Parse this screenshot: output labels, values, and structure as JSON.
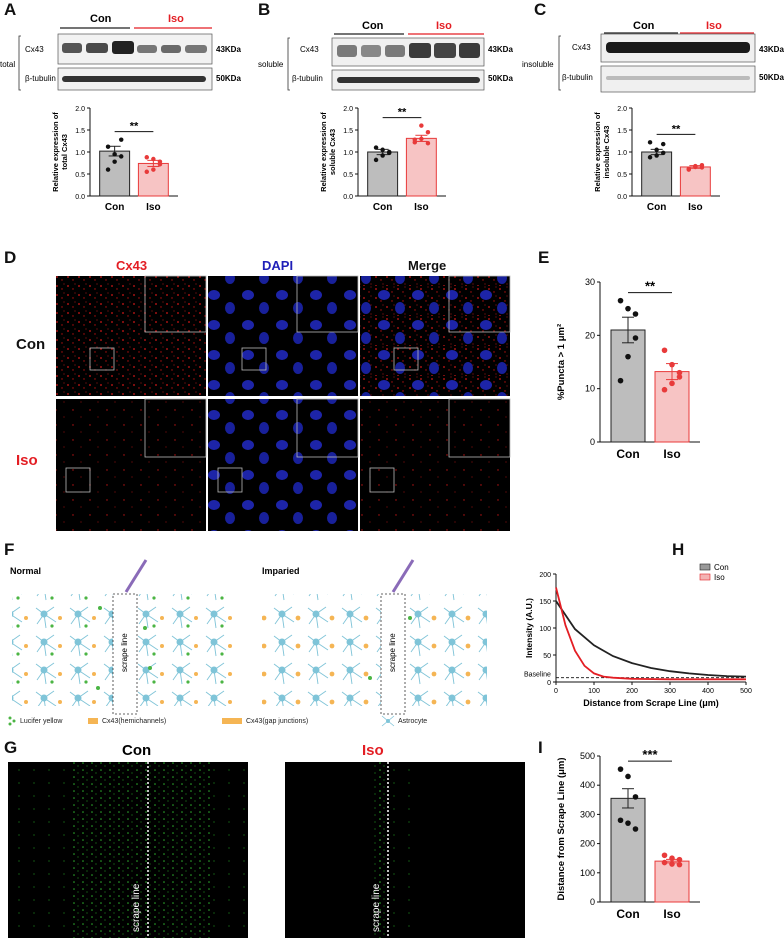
{
  "panel_labels": {
    "A": "A",
    "B": "B",
    "C": "C",
    "D": "D",
    "E": "E",
    "F": "F",
    "G": "G",
    "H": "H",
    "I": "I"
  },
  "blots": {
    "A": {
      "fraction": "total",
      "group1": "Con",
      "group2": "Iso",
      "band1": "Cx43",
      "band2": "β-tubulin",
      "kda1": "43KDa",
      "kda2": "50KDa"
    },
    "B": {
      "fraction": "soluble",
      "group1": "Con",
      "group2": "Iso",
      "band1": "Cx43",
      "band2": "β-tubulin",
      "kda1": "43KDa",
      "kda2": "50KDa"
    },
    "C": {
      "fraction": "insoluble",
      "group1": "Con",
      "group2": "Iso",
      "band1": "Cx43",
      "band2": "β-tubulin",
      "kda1": "43KDa",
      "kda2": "50KDa"
    }
  },
  "microscopy_D": {
    "col1": "Cx43",
    "col2": "DAPI",
    "col3": "Merge",
    "row1": "Con",
    "row2": "Iso"
  },
  "schematic_F": {
    "left_title": "Normal",
    "right_title": "Imparied",
    "scrape_text": "scrape line",
    "legend1": "Lucifer yellow",
    "legend2": "Cx43(hemichannels)",
    "legend3": "Cx43(gap junctions)",
    "legend4": "Astrocyte"
  },
  "dye_G": {
    "label1": "Con",
    "label2": "Iso",
    "scrape_text": "scrape line"
  },
  "colors": {
    "con": "#bdbdbd",
    "iso": "#f7c4c4",
    "iso_edge": "#e83a3a",
    "red_text": "#e31e24",
    "blue_text": "#1f1fb8"
  },
  "chart_data": [
    {
      "id": "A",
      "type": "bar",
      "ylabel": "Relative expression of total Cx43",
      "categories": [
        "Con",
        "Iso"
      ],
      "values": [
        1.02,
        0.74
      ],
      "errors": [
        0.11,
        0.07
      ],
      "points": [
        [
          0.6,
          0.95,
          1.28,
          1.12,
          0.78,
          0.9
        ],
        [
          0.55,
          0.84,
          0.78,
          0.88,
          0.6,
          0.72
        ]
      ],
      "ylim": [
        0,
        2.0
      ],
      "yticks": [
        "0.0",
        "0.5",
        "1.0",
        "1.5",
        "2.0"
      ],
      "significance": "**"
    },
    {
      "id": "B",
      "type": "bar",
      "ylabel": "Relative expression of soluble Cx43",
      "categories": [
        "Con",
        "Iso"
      ],
      "values": [
        1.0,
        1.31
      ],
      "errors": [
        0.06,
        0.07
      ],
      "points": [
        [
          0.82,
          1.05,
          0.98,
          1.1,
          0.92,
          1.0
        ],
        [
          1.22,
          1.3,
          1.45,
          1.28,
          1.6,
          1.2
        ]
      ],
      "ylim": [
        0,
        2.0
      ],
      "yticks": [
        "0.0",
        "0.5",
        "1.0",
        "1.5",
        "2.0"
      ],
      "significance": "**"
    },
    {
      "id": "C",
      "type": "bar",
      "ylabel": "Relative expression of insoluble Cx43",
      "categories": [
        "Con",
        "Iso"
      ],
      "values": [
        1.0,
        0.66
      ],
      "errors": [
        0.06,
        0.03
      ],
      "points": [
        [
          0.88,
          1.05,
          1.18,
          1.22,
          0.92,
          0.98
        ],
        [
          0.6,
          0.66,
          0.7,
          0.62,
          0.68,
          0.65
        ]
      ],
      "ylim": [
        0,
        2.0
      ],
      "yticks": [
        "0.0",
        "0.5",
        "1.0",
        "1.5",
        "2.0"
      ],
      "significance": "**"
    },
    {
      "id": "E",
      "type": "bar",
      "ylabel": "%Puncta > 1 μm²",
      "categories": [
        "Con",
        "Iso"
      ],
      "values": [
        21.0,
        13.2
      ],
      "errors": [
        2.4,
        1.5
      ],
      "points": [
        [
          26.5,
          25.0,
          19.5,
          11.5,
          16.0,
          24.0
        ],
        [
          17.2,
          14.5,
          12.2,
          9.8,
          11.0,
          13.0
        ]
      ],
      "ylim": [
        0,
        30
      ],
      "yticks": [
        "0",
        "10",
        "20",
        "30"
      ],
      "significance": "**"
    },
    {
      "id": "H",
      "type": "line",
      "ylabel": "Intensity (A.U.)",
      "xlabel": "Distance from Scrape Line (μm)",
      "xlim": [
        0,
        500
      ],
      "ylim": [
        0,
        200
      ],
      "xticks": [
        "0",
        "100",
        "200",
        "300",
        "400",
        "500"
      ],
      "yticks": [
        "0",
        "50",
        "100",
        "150",
        "200"
      ],
      "baseline_label": "Baseline",
      "baseline_value": 8,
      "series": [
        {
          "name": "Con",
          "color": "#222222",
          "x": [
            0,
            50,
            100,
            150,
            200,
            250,
            300,
            350,
            400,
            450,
            500
          ],
          "y": [
            150,
            98,
            68,
            48,
            35,
            26,
            20,
            16,
            13,
            11,
            10
          ]
        },
        {
          "name": "Iso",
          "color": "#e31e24",
          "x": [
            0,
            25,
            50,
            75,
            100,
            125,
            150,
            200,
            300,
            400,
            500
          ],
          "y": [
            175,
            105,
            58,
            30,
            16,
            10,
            8,
            6,
            5,
            5,
            5
          ]
        }
      ]
    },
    {
      "id": "I",
      "type": "bar",
      "ylabel": "Distance from Scrape Line (μm)",
      "categories": [
        "Con",
        "Iso"
      ],
      "values": [
        355,
        140
      ],
      "errors": [
        33,
        6
      ],
      "points": [
        [
          455,
          430,
          360,
          280,
          270,
          250
        ],
        [
          160,
          150,
          145,
          135,
          130,
          128
        ]
      ],
      "ylim": [
        0,
        500
      ],
      "yticks": [
        "0",
        "100",
        "200",
        "300",
        "400",
        "500"
      ],
      "significance": "***"
    }
  ]
}
